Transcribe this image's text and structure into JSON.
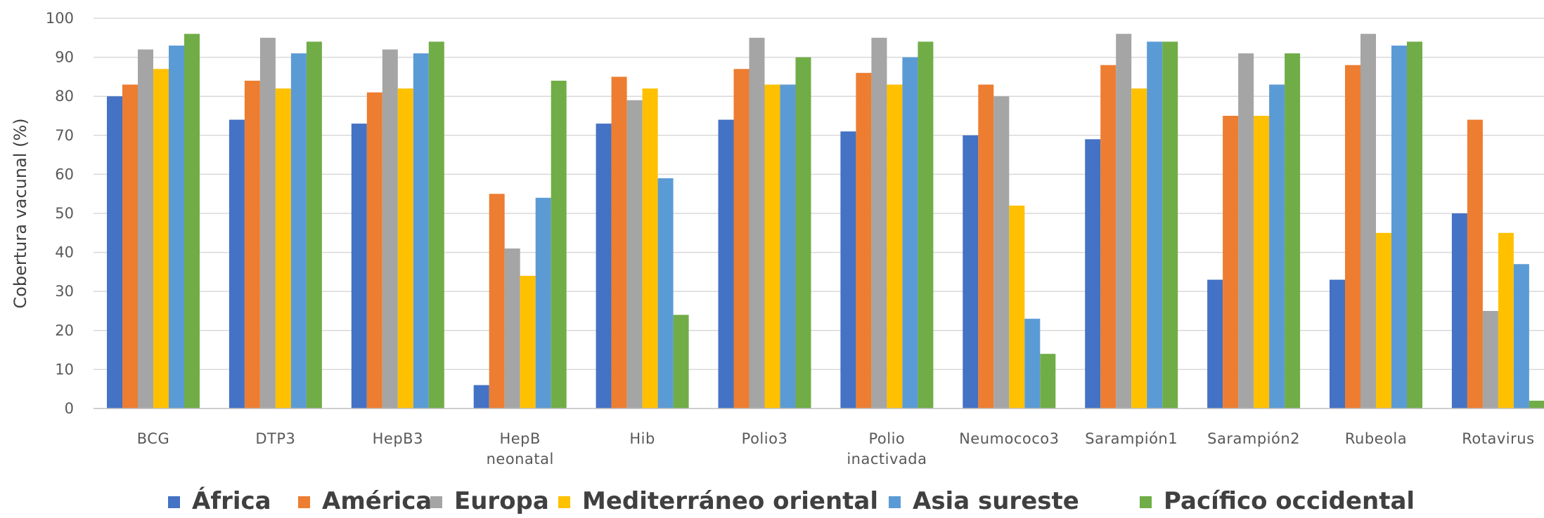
{
  "chart_data": {
    "type": "bar",
    "title": "",
    "xlabel": "",
    "ylabel": "Cobertura vacunal (%)",
    "ylim": [
      0,
      100
    ],
    "yticks": [
      0,
      10,
      20,
      30,
      40,
      50,
      60,
      70,
      80,
      90,
      100
    ],
    "grid": true,
    "legend_position": "bottom",
    "categories": [
      [
        "BCG"
      ],
      [
        "DTP3"
      ],
      [
        "HepB3"
      ],
      [
        "HepB",
        "neonatal"
      ],
      [
        "Hib"
      ],
      [
        "Polio3"
      ],
      [
        "Polio",
        "inactivada"
      ],
      [
        "Neumococo3"
      ],
      [
        "Sarampión1"
      ],
      [
        "Sarampión2"
      ],
      [
        "Rubeola"
      ],
      [
        "Rotavirus"
      ]
    ],
    "series": [
      {
        "name": "África",
        "color": "#4472C4",
        "values": [
          80,
          74,
          73,
          6,
          73,
          74,
          71,
          70,
          69,
          33,
          33,
          50
        ]
      },
      {
        "name": "América",
        "color": "#ED7D31",
        "values": [
          83,
          84,
          81,
          55,
          85,
          87,
          86,
          83,
          88,
          75,
          88,
          74
        ]
      },
      {
        "name": "Europa",
        "color": "#A5A5A5",
        "values": [
          92,
          95,
          92,
          41,
          79,
          95,
          95,
          80,
          96,
          91,
          96,
          25
        ]
      },
      {
        "name": "Mediterráneo oriental",
        "color": "#FFC000",
        "values": [
          87,
          82,
          82,
          34,
          82,
          83,
          83,
          52,
          82,
          75,
          45,
          45
        ]
      },
      {
        "name": "Asia sureste",
        "color": "#5B9BD5",
        "values": [
          93,
          91,
          91,
          54,
          59,
          83,
          90,
          23,
          94,
          83,
          93,
          37
        ]
      },
      {
        "name": "Pacífico occidental",
        "color": "#70AD47",
        "values": [
          96,
          94,
          94,
          84,
          24,
          90,
          94,
          14,
          94,
          91,
          94,
          2
        ]
      }
    ]
  }
}
